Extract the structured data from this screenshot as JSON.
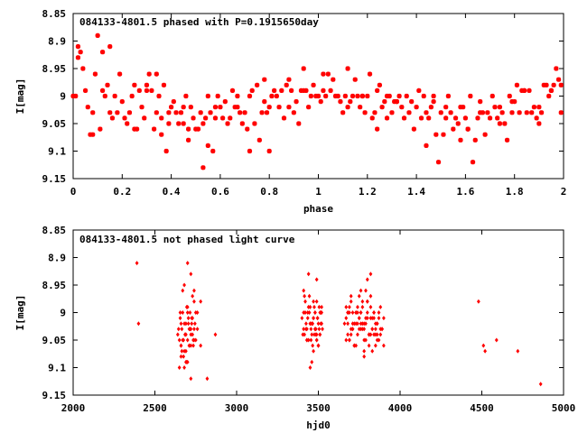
{
  "chart_data": [
    {
      "type": "scatter",
      "title": "084133-4801.5 phased with P=0.1915650day",
      "xlabel": "phase",
      "ylabel": "I[mag]",
      "xlim": [
        0,
        2
      ],
      "ylim": [
        9.15,
        8.85
      ],
      "y_inverted": true,
      "grid": false,
      "color": "#ff0000",
      "x_ticks": [
        "0",
        "0.2",
        "0.4",
        "0.6",
        "0.8",
        "1",
        "1.2",
        "1.4",
        "1.6",
        "1.8",
        "2"
      ],
      "y_ticks": [
        "8.85",
        "8.9",
        "8.95",
        "9",
        "9.05",
        "9.1",
        "9.15"
      ],
      "series": [
        {
          "x": [
            0.0,
            0.01,
            0.02,
            0.03,
            0.05,
            0.06,
            0.07,
            0.08,
            0.09,
            0.1,
            0.11,
            0.12,
            0.13,
            0.14,
            0.15,
            0.16,
            0.17,
            0.18,
            0.19,
            0.2,
            0.21,
            0.22,
            0.23,
            0.24,
            0.25,
            0.26,
            0.27,
            0.28,
            0.29,
            0.3,
            0.31,
            0.32,
            0.33,
            0.34,
            0.35,
            0.36,
            0.37,
            0.38,
            0.39,
            0.4,
            0.41,
            0.42,
            0.43,
            0.44,
            0.45,
            0.46,
            0.47,
            0.48,
            0.49,
            0.5,
            0.51,
            0.52,
            0.53,
            0.54,
            0.55,
            0.56,
            0.57,
            0.58,
            0.59,
            0.6,
            0.61,
            0.62,
            0.63,
            0.64,
            0.65,
            0.66,
            0.67,
            0.68,
            0.69,
            0.7,
            0.71,
            0.72,
            0.73,
            0.74,
            0.75,
            0.76,
            0.77,
            0.78,
            0.79,
            0.8,
            0.81,
            0.82,
            0.83,
            0.84,
            0.85,
            0.86,
            0.87,
            0.88,
            0.89,
            0.9,
            0.91,
            0.92,
            0.93,
            0.94,
            0.95,
            0.96,
            0.97,
            0.98,
            0.99,
            1.0,
            1.01,
            1.02,
            1.03,
            1.05,
            1.06,
            1.07,
            1.08,
            1.09,
            1.1,
            1.11,
            1.12,
            1.13,
            1.14,
            1.15,
            1.16,
            1.17,
            1.18,
            1.19,
            1.2,
            1.21,
            1.22,
            1.23,
            1.24,
            1.25,
            1.26,
            1.27,
            1.28,
            1.29,
            1.3,
            1.31,
            1.32,
            1.33,
            1.34,
            1.35,
            1.36,
            1.37,
            1.38,
            1.39,
            1.4,
            1.41,
            1.42,
            1.43,
            1.44,
            1.45,
            1.46,
            1.47,
            1.48,
            1.49,
            1.5,
            1.51,
            1.52,
            1.53,
            1.54,
            1.55,
            1.56,
            1.57,
            1.58,
            1.59,
            1.6,
            1.61,
            1.62,
            1.63,
            1.64,
            1.65,
            1.66,
            1.67,
            1.68,
            1.69,
            1.7,
            1.71,
            1.72,
            1.73,
            1.74,
            1.75,
            1.76,
            1.77,
            1.78,
            1.79,
            1.8,
            1.81,
            1.82,
            1.83,
            1.84,
            1.85,
            1.86,
            1.87,
            1.88,
            1.89,
            1.9,
            1.91,
            1.92,
            1.93,
            1.94,
            1.95,
            1.96,
            1.97,
            1.98,
            1.99,
            0.02,
            0.04,
            0.08,
            0.12,
            0.15,
            0.25,
            0.3,
            0.34,
            0.36,
            0.39,
            0.45,
            0.47,
            0.53,
            0.55,
            0.58,
            0.67,
            0.72,
            0.78,
            0.8,
            0.88,
            0.94,
            1.02,
            1.04,
            1.12,
            1.18,
            1.24,
            1.28,
            1.32,
            1.44,
            1.47,
            1.52,
            1.58,
            1.61,
            1.66,
            1.74,
            1.79,
            1.84,
            1.9,
            1.95,
            1.99
          ],
          "y": [
            9.0,
            9.0,
            8.91,
            8.92,
            8.99,
            9.02,
            9.07,
            9.07,
            8.96,
            8.89,
            9.06,
            8.92,
            9.0,
            8.98,
            9.03,
            9.04,
            9.0,
            9.03,
            8.96,
            9.01,
            9.04,
            9.05,
            9.03,
            9.0,
            9.06,
            9.06,
            8.99,
            9.02,
            9.04,
            8.98,
            8.96,
            8.99,
            9.06,
            9.03,
            9.0,
            9.07,
            8.98,
            9.1,
            9.05,
            9.02,
            9.01,
            9.03,
            9.05,
            9.03,
            9.02,
            9.0,
            9.08,
            9.02,
            9.04,
            9.06,
            9.06,
            9.03,
            9.13,
            9.04,
            9.09,
            9.03,
            9.1,
            9.02,
            9.0,
            9.02,
            9.04,
            9.01,
            9.05,
            9.04,
            8.99,
            9.02,
            9.0,
            9.03,
            9.05,
            9.03,
            9.06,
            9.0,
            8.99,
            9.05,
            8.98,
            9.08,
            9.03,
            9.01,
            9.03,
            9.1,
            9.0,
            8.99,
            9.0,
            9.02,
            8.99,
            9.04,
            8.98,
            8.97,
            8.99,
            9.03,
            9.01,
            9.05,
            8.99,
            8.95,
            8.99,
            9.02,
            9.0,
            8.98,
            9.0,
            9.0,
            9.01,
            8.96,
            9.0,
            8.99,
            8.97,
            9.0,
            9.0,
            9.01,
            9.03,
            9.0,
            8.95,
            9.01,
            9.0,
            8.97,
            9.0,
            9.02,
            9.0,
            9.03,
            9.0,
            8.96,
            9.04,
            9.03,
            8.99,
            8.98,
            9.02,
            9.01,
            9.0,
            9.0,
            9.03,
            9.01,
            9.01,
            9.0,
            9.02,
            9.04,
            9.0,
            9.03,
            9.01,
            9.06,
            9.02,
            8.99,
            9.04,
            9.0,
            9.03,
            9.04,
            9.02,
            9.01,
            9.07,
            9.12,
            9.03,
            9.07,
            9.02,
            9.0,
            9.03,
            9.06,
            9.04,
            9.05,
            9.08,
            9.02,
            9.04,
            9.06,
            9.0,
            9.12,
            9.08,
            9.04,
            9.01,
            9.03,
            9.07,
            9.03,
            9.04,
            9.0,
            9.02,
            9.04,
            9.05,
            9.03,
            9.05,
            9.08,
            9.0,
            9.01,
            9.01,
            8.98,
            9.03,
            8.99,
            8.99,
            9.03,
            8.99,
            9.03,
            9.02,
            9.04,
            9.02,
            9.03,
            8.98,
            8.98,
            9.0,
            8.99,
            8.98,
            8.95,
            8.97,
            9.03,
            8.93,
            8.95,
            9.03,
            8.99,
            8.91,
            8.98,
            8.99,
            8.96,
            9.04,
            9.03,
            9.05,
            9.06,
            9.05,
            9.0,
            9.04,
            9.02,
            9.1,
            8.97,
            9.02,
            9.02,
            8.99,
            8.99,
            8.96,
            9.02,
            9.0,
            9.06,
            9.04,
            9.01,
            9.09,
            9.0,
            9.04,
            9.02,
            9.06,
            9.03,
            9.02,
            9.03,
            8.99,
            9.05,
            8.99,
            8.98
          ]
        }
      ]
    },
    {
      "type": "scatter",
      "title": "084133-4801.5 not phased light curve",
      "xlabel": "hjd0",
      "ylabel": "I[mag]",
      "xlim": [
        2000,
        5000
      ],
      "ylim": [
        9.15,
        8.85
      ],
      "y_inverted": true,
      "grid": false,
      "color": "#ff0000",
      "x_ticks": [
        "2000",
        "2500",
        "3000",
        "3500",
        "4000",
        "4500",
        "5000"
      ],
      "y_ticks": [
        "8.85",
        "8.9",
        "8.95",
        "9",
        "9.05",
        "9.1",
        "9.15"
      ],
      "series": [
        {
          "x": [
            2390,
            2400,
            2640,
            2650,
            2655,
            2660,
            2665,
            2670,
            2675,
            2680,
            2685,
            2690,
            2695,
            2700,
            2705,
            2710,
            2715,
            2720,
            2725,
            2730,
            2735,
            2740,
            2745,
            2750,
            2645,
            2655,
            2665,
            2675,
            2685,
            2695,
            2705,
            2715,
            2725,
            2735,
            2660,
            2670,
            2680,
            2690,
            2700,
            2710,
            2720,
            2730,
            2740,
            2750,
            2660,
            2670,
            2680,
            2690,
            2700,
            2710,
            2720,
            2730,
            2740,
            2650,
            2680,
            2700,
            2720,
            2740,
            2760,
            2780,
            2820,
            2870,
            2780,
            2700,
            2720,
            2690,
            2660,
            2760,
            3400,
            3405,
            3410,
            3415,
            3420,
            3425,
            3430,
            3435,
            3440,
            3445,
            3450,
            3455,
            3460,
            3465,
            3470,
            3475,
            3480,
            3485,
            3490,
            3495,
            3500,
            3505,
            3510,
            3515,
            3520,
            3525,
            3410,
            3420,
            3430,
            3440,
            3450,
            3460,
            3470,
            3480,
            3490,
            3500,
            3510,
            3520,
            3415,
            3425,
            3435,
            3445,
            3455,
            3465,
            3475,
            3485,
            3495,
            3505,
            3515,
            3410,
            3430,
            3450,
            3470,
            3490,
            3510,
            3440,
            3460,
            3480,
            3500,
            3520,
            3450,
            3460,
            3480,
            3490,
            3500,
            3470,
            3490,
            3660,
            3670,
            3680,
            3690,
            3700,
            3710,
            3720,
            3730,
            3740,
            3750,
            3760,
            3770,
            3780,
            3790,
            3800,
            3810,
            3820,
            3830,
            3840,
            3850,
            3860,
            3870,
            3880,
            3890,
            3900,
            3670,
            3680,
            3690,
            3700,
            3710,
            3720,
            3730,
            3740,
            3750,
            3760,
            3770,
            3780,
            3790,
            3800,
            3810,
            3820,
            3830,
            3840,
            3850,
            3860,
            3870,
            3880,
            3680,
            3700,
            3720,
            3740,
            3760,
            3780,
            3800,
            3820,
            3840,
            3860,
            3690,
            3710,
            3730,
            3750,
            3770,
            3790,
            3810,
            3830,
            3850,
            3670,
            3690,
            3710,
            3730,
            3750,
            3770,
            3790,
            3810,
            3830,
            3850,
            3870,
            3890,
            3680,
            3720,
            3760,
            3800,
            3840,
            3880,
            3760,
            3780,
            3800,
            3820,
            3700,
            3740,
            3780,
            3820,
            3860,
            3900,
            4480,
            4510,
            4520,
            4590,
            4720,
            4860
          ],
          "y": [
            8.91,
            9.02,
            9.04,
            9.05,
            9.01,
            9.06,
            9.03,
            9.0,
            9.08,
            9.02,
            9.04,
            9.07,
            8.99,
            9.05,
            9.02,
            9.06,
            9.0,
            9.03,
            9.01,
            9.04,
            9.06,
            8.98,
            9.02,
            9.05,
            9.03,
            9.0,
            9.07,
            9.05,
            9.04,
            9.09,
            9.01,
            9.03,
            9.02,
            9.05,
            9.08,
            8.96,
            9.1,
            9.02,
            8.99,
            9.06,
            9.04,
            9.01,
            9.03,
            9.0,
            9.02,
            9.05,
            9.07,
            9.04,
            9.0,
            9.03,
            9.06,
            8.97,
            9.05,
            9.1,
            8.95,
            8.91,
            8.93,
            8.96,
            9.0,
            8.98,
            9.12,
            9.04,
            9.06,
            9.09,
            9.12,
            9.09,
            9.06,
            9.03,
            9.01,
            9.04,
            9.0,
            8.97,
            8.98,
            9.02,
            9.03,
            9.01,
            9.05,
            9.0,
            8.99,
            9.03,
            9.02,
            9.06,
            8.98,
            9.04,
            9.0,
            9.03,
            9.05,
            9.01,
            9.02,
            8.99,
            9.04,
            9.02,
            9.0,
            9.03,
            9.03,
            9.0,
            9.05,
            8.99,
            9.02,
            9.04,
            9.01,
            9.03,
            8.98,
            9.06,
            9.0,
            9.02,
            9.04,
            9.03,
            9.0,
            8.97,
            9.05,
            9.02,
            8.99,
            9.04,
            9.01,
            9.03,
            9.0,
            8.96,
            9.05,
            9.02,
            9.07,
            8.94,
            9.04,
            8.93,
            9.02,
            9.03,
            9.06,
            8.99,
            9.1,
            9.09,
            9.0,
            9.04,
            9.06,
            9.01,
            9.05,
            9.02,
            9.01,
            9.04,
            9.0,
            8.98,
            9.03,
            9.02,
            9.06,
            9.0,
            9.01,
            9.03,
            8.99,
            9.02,
            9.05,
            9.0,
            9.04,
            8.97,
            9.03,
            9.01,
            9.06,
            9.02,
            9.0,
            9.04,
            9.03,
            9.01,
            9.05,
            9.02,
            8.99,
            9.03,
            9.0,
            9.06,
            9.02,
            9.04,
            9.01,
            9.0,
            9.03,
            9.05,
            9.02,
            8.98,
            9.04,
            9.01,
            9.03,
            9.0,
            9.02,
            9.05,
            9.01,
            9.03,
            9.0,
            9.04,
            9.06,
            8.99,
            9.02,
            9.03,
            9.01,
            9.04,
            9.0,
            9.02,
            9.05,
            9.03,
            9.0,
            8.97,
            9.02,
            8.96,
            9.04,
            9.01,
            9.03,
            8.99,
            9.05,
            9.02,
            9.0,
            9.03,
            8.98,
            9.01,
            9.06,
            9.07,
            9.04,
            9.05,
            9.03,
            9.0,
            9.06,
            8.96,
            8.98,
            9.04,
            8.99,
            9.0,
            9.08,
            8.94,
            8.99,
            8.97,
            9.02,
            9.07,
            8.93,
            9.04,
            9.06,
            8.98,
            9.06,
            9.07,
            9.05,
            9.07,
            9.13
          ]
        }
      ]
    }
  ]
}
